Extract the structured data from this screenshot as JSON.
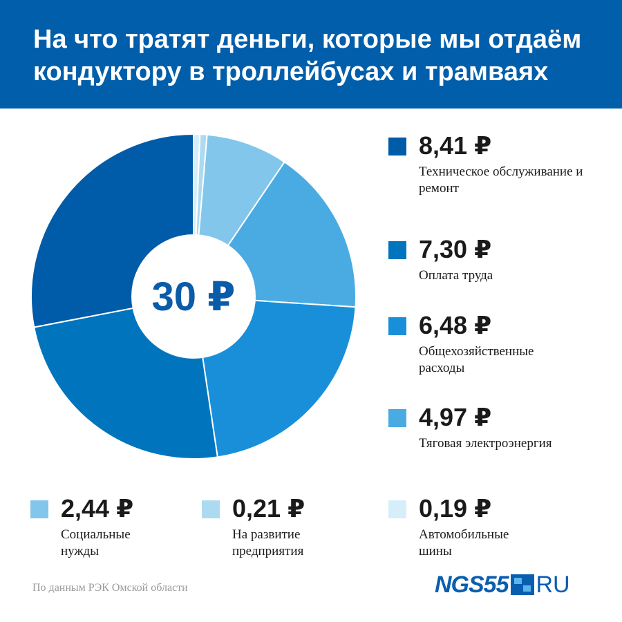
{
  "header": {
    "title": "На что тратят деньги, которые мы отдаём кондуктору в троллейбусах и трамваях"
  },
  "chart_data": {
    "type": "pie",
    "center_label": "30 ₽",
    "total": 30,
    "slices": [
      {
        "value": 8.41,
        "value_label": "8,41 ₽",
        "label": "Техническое обслуживание и ремонт",
        "color": "#005ba8"
      },
      {
        "value": 7.3,
        "value_label": "7,30 ₽",
        "label": "Оплата труда",
        "color": "#0075bd"
      },
      {
        "value": 6.48,
        "value_label": "6,48 ₽",
        "label": "Общехозяйственные расходы",
        "color": "#1a8fd9"
      },
      {
        "value": 4.97,
        "value_label": "4,97 ₽",
        "label": "Тяговая электроэнергия",
        "color": "#4aabe3"
      },
      {
        "value": 2.44,
        "value_label": "2,44 ₽",
        "label": "Социальные нужды",
        "color": "#82c6eb"
      },
      {
        "value": 0.21,
        "value_label": "0,21 ₽",
        "label": "На развитие предприятия",
        "color": "#acdaf1"
      },
      {
        "value": 0.19,
        "value_label": "0,19 ₽",
        "label": "Автомобильные шины",
        "color": "#d6eef9"
      }
    ]
  },
  "footer": {
    "source": "По данным РЭК Омской области",
    "logo_left": "NGS55",
    "logo_right": "RU"
  }
}
